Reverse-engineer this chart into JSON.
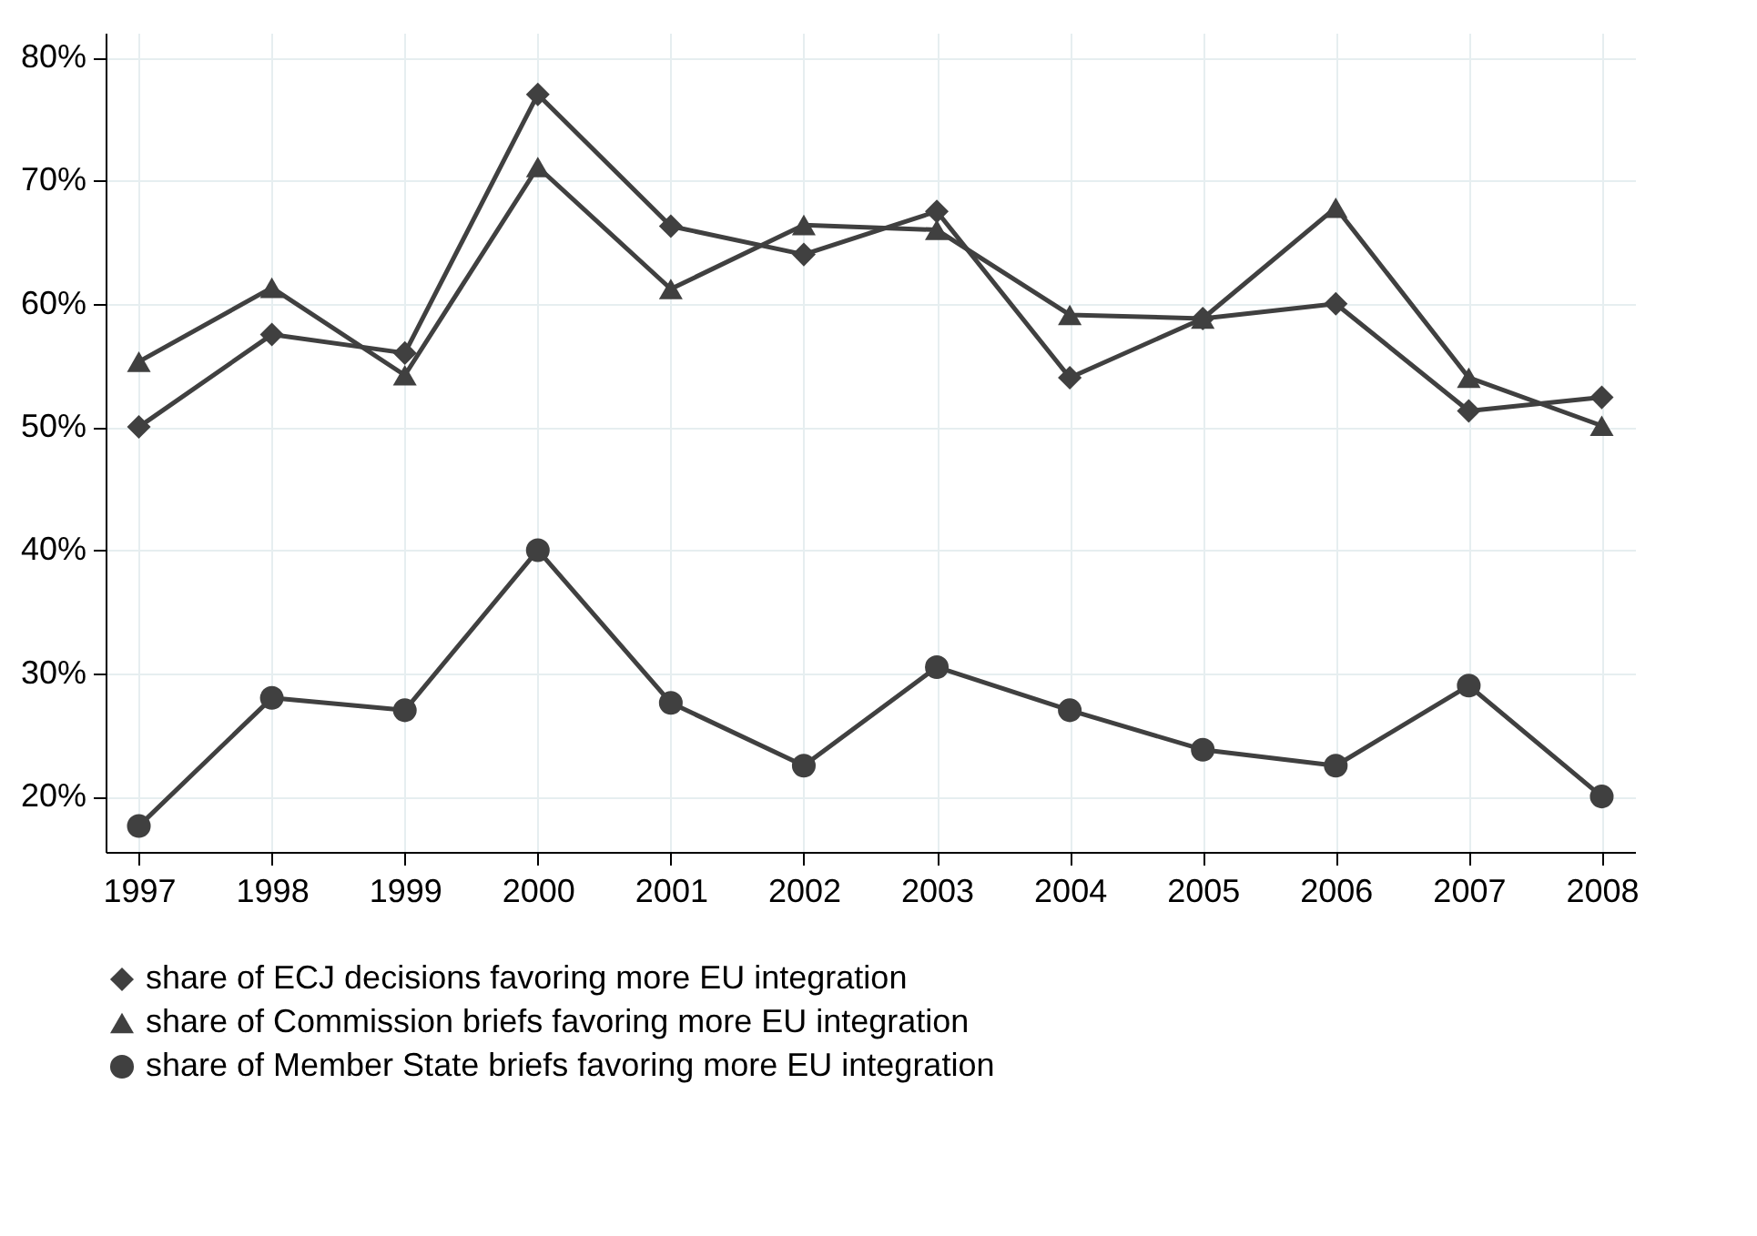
{
  "chart_data": {
    "type": "line",
    "x": [
      1997,
      1998,
      1999,
      2000,
      2001,
      2002,
      2003,
      2004,
      2005,
      2006,
      2007,
      2008
    ],
    "series": [
      {
        "name": "share of ECJ decisions favoring more EU integration",
        "color": "#404040",
        "marker": "diamond",
        "values": [
          50,
          57.5,
          56,
          77,
          66.3,
          64,
          67.5,
          54,
          58.8,
          60,
          51.3,
          52.4
        ]
      },
      {
        "name": "share of Commission briefs favoring more EU integration",
        "color": "#404040",
        "marker": "triangle",
        "values": [
          55.3,
          61.3,
          54.2,
          71.1,
          61.2,
          66.4,
          66,
          59.1,
          58.8,
          67.8,
          54,
          50.1
        ]
      },
      {
        "name": "share of Member State briefs favoring more EU integration",
        "color": "#404040",
        "marker": "circle",
        "values": [
          17.6,
          28,
          27,
          40,
          27.6,
          22.5,
          30.5,
          27,
          23.8,
          22.5,
          29,
          20
        ]
      }
    ],
    "xlim": [
      1996.75,
      2008.25
    ],
    "xticks": [
      1997,
      1998,
      1999,
      2000,
      2001,
      2002,
      2003,
      2004,
      2005,
      2006,
      2007,
      2008
    ],
    "ylim": [
      15.5,
      82
    ],
    "yticks": [
      {
        "value": 20,
        "label": "20%"
      },
      {
        "value": 30,
        "label": "30%"
      },
      {
        "value": 40,
        "label": "40%"
      },
      {
        "value": 50,
        "label": "50%"
      },
      {
        "value": 60,
        "label": "60%"
      },
      {
        "value": 70,
        "label": "70%"
      },
      {
        "value": 80,
        "label": "80%"
      }
    ],
    "grid": true,
    "legend": "bottom",
    "line_style": "solid"
  }
}
